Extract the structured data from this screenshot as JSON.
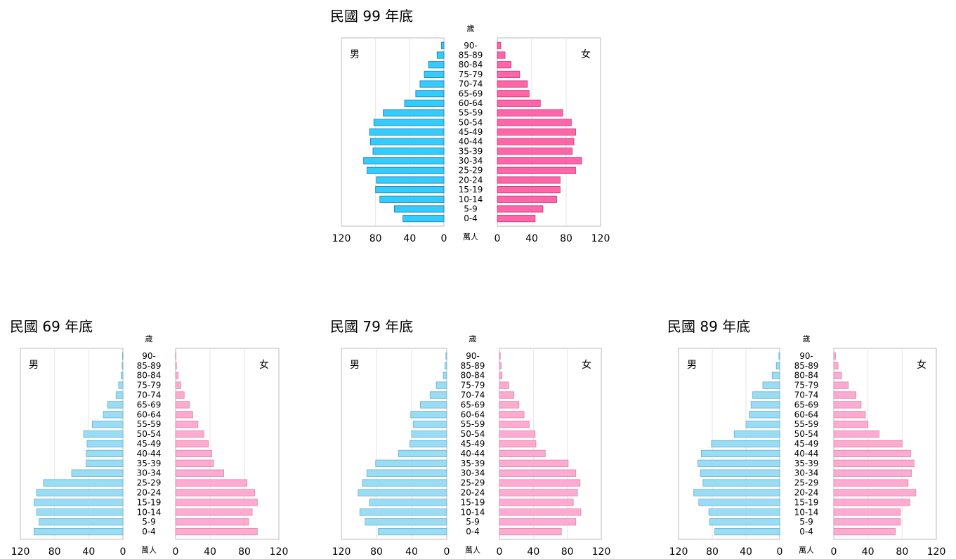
{
  "age_unit": "歲",
  "value_unit": "萬人",
  "male_label": "男",
  "female_label": "女",
  "chart_data": [
    {
      "type": "bar",
      "title": "民國 99 年底",
      "categories": [
        "0-4",
        "5-9",
        "10-14",
        "15-19",
        "20-24",
        "25-29",
        "30-34",
        "35-39",
        "40-44",
        "45-49",
        "50-54",
        "55-59",
        "60-64",
        "65-69",
        "70-74",
        "75-79",
        "80-84",
        "85-89",
        "90-"
      ],
      "xlim": [
        0,
        120
      ],
      "x_ticks": [
        0,
        40,
        80,
        120
      ],
      "series": [
        {
          "name": "男",
          "color": "#33ccff",
          "values": [
            48,
            58,
            75,
            80,
            79,
            90,
            94,
            83,
            86,
            87,
            82,
            71,
            46,
            33,
            28,
            23,
            18,
            8,
            3
          ]
        },
        {
          "name": "女",
          "color": "#ff66aa",
          "values": [
            44,
            53,
            69,
            73,
            73,
            91,
            98,
            87,
            89,
            91,
            86,
            76,
            50,
            37,
            35,
            26,
            16,
            9,
            4
          ]
        }
      ]
    },
    {
      "type": "bar",
      "title": "民國 69 年底",
      "categories": [
        "0-4",
        "5-9",
        "10-14",
        "15-19",
        "20-24",
        "25-29",
        "30-34",
        "35-39",
        "40-44",
        "45-49",
        "50-54",
        "55-59",
        "60-64",
        "65-69",
        "70-74",
        "75-79",
        "80-84",
        "85-89",
        "90-"
      ],
      "xlim": [
        0,
        120
      ],
      "x_ticks": [
        0,
        40,
        80,
        120
      ],
      "series": [
        {
          "name": "男",
          "color": "#99ddf5",
          "values": [
            104,
            98,
            101,
            104,
            101,
            93,
            60,
            43,
            43,
            42,
            46,
            36,
            23,
            18,
            8,
            5,
            2,
            1,
            0.5
          ]
        },
        {
          "name": "女",
          "color": "#ffaad0",
          "values": [
            95,
            85,
            89,
            95,
            92,
            83,
            56,
            44,
            42,
            38,
            33,
            26,
            20,
            16,
            10,
            6,
            3,
            1,
            0.5
          ]
        }
      ]
    },
    {
      "type": "bar",
      "title": "民國 79 年底",
      "categories": [
        "0-4",
        "5-9",
        "10-14",
        "15-19",
        "20-24",
        "25-29",
        "30-34",
        "35-39",
        "40-44",
        "45-49",
        "50-54",
        "55-59",
        "60-64",
        "65-69",
        "70-74",
        "75-79",
        "80-84",
        "85-89",
        "90-"
      ],
      "xlim": [
        0,
        120
      ],
      "x_ticks": [
        0,
        40,
        80,
        120
      ],
      "series": [
        {
          "name": "男",
          "color": "#99ddf5",
          "values": [
            78,
            93,
            99,
            88,
            101,
            96,
            91,
            81,
            55,
            42,
            40,
            38,
            41,
            30,
            19,
            12,
            4,
            2,
            1
          ]
        },
        {
          "name": "女",
          "color": "#ffaad0",
          "values": [
            73,
            90,
            96,
            87,
            92,
            95,
            90,
            81,
            54,
            43,
            42,
            35,
            29,
            23,
            17,
            11,
            3,
            2,
            1
          ]
        }
      ]
    },
    {
      "type": "bar",
      "title": "民國 89 年底",
      "categories": [
        "0-4",
        "5-9",
        "10-14",
        "15-19",
        "20-24",
        "25-29",
        "30-34",
        "35-39",
        "40-44",
        "45-49",
        "50-54",
        "55-59",
        "60-64",
        "65-69",
        "70-74",
        "75-79",
        "80-84",
        "85-89",
        "90-"
      ],
      "xlim": [
        0,
        120
      ],
      "x_ticks": [
        0,
        40,
        80,
        120
      ],
      "series": [
        {
          "name": "男",
          "color": "#99ddf5",
          "values": [
            77,
            83,
            84,
            96,
            102,
            91,
            94,
            97,
            93,
            81,
            54,
            40,
            36,
            34,
            32,
            20,
            9,
            4,
            1
          ]
        },
        {
          "name": "女",
          "color": "#ffaad0",
          "values": [
            72,
            78,
            78,
            89,
            96,
            87,
            91,
            94,
            90,
            80,
            53,
            40,
            37,
            32,
            26,
            17,
            9,
            5,
            2
          ]
        }
      ]
    }
  ]
}
